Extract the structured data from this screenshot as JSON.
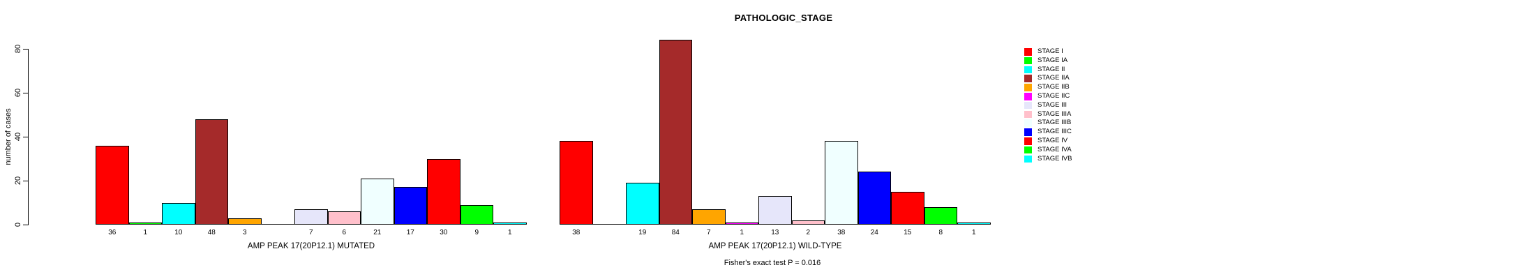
{
  "chart_data": {
    "type": "bar",
    "title": "PATHOLOGIC_STAGE",
    "ylabel": "number of cases",
    "footer": "Fisher's exact test P = 0.016",
    "ylim": [
      0,
      80
    ],
    "y_ticks": [
      0,
      20,
      40,
      60,
      80
    ],
    "grid": false,
    "legend_position": "right",
    "stages": [
      {
        "label": "STAGE I",
        "color": "#FF0000"
      },
      {
        "label": "STAGE IA",
        "color": "#00FF00"
      },
      {
        "label": "STAGE II",
        "color": "#00FFFF"
      },
      {
        "label": "STAGE IIA",
        "color": "#A52A2A"
      },
      {
        "label": "STAGE IIB",
        "color": "#FFA500"
      },
      {
        "label": "STAGE IIC",
        "color": "#FF00FF"
      },
      {
        "label": "STAGE III",
        "color": "#E6E6FA"
      },
      {
        "label": "STAGE IIIA",
        "color": "#FFC0CB"
      },
      {
        "label": "STAGE IIIB",
        "color": "#F0FFFF"
      },
      {
        "label": "STAGE IIIC",
        "color": "#0000FF"
      },
      {
        "label": "STAGE IV",
        "color": "#FF0000"
      },
      {
        "label": "STAGE IVA",
        "color": "#00FF00"
      },
      {
        "label": "STAGE IVB",
        "color": "#00FFFF"
      }
    ],
    "groups": [
      {
        "label": "AMP PEAK 17(20P12.1) MUTATED",
        "values": [
          36,
          1,
          10,
          48,
          3,
          0,
          7,
          6,
          21,
          17,
          30,
          9,
          1
        ]
      },
      {
        "label": "AMP PEAK 17(20P12.1) WILD-TYPE",
        "values": [
          38,
          0,
          19,
          84,
          7,
          1,
          13,
          2,
          38,
          24,
          15,
          8,
          1
        ]
      }
    ]
  }
}
